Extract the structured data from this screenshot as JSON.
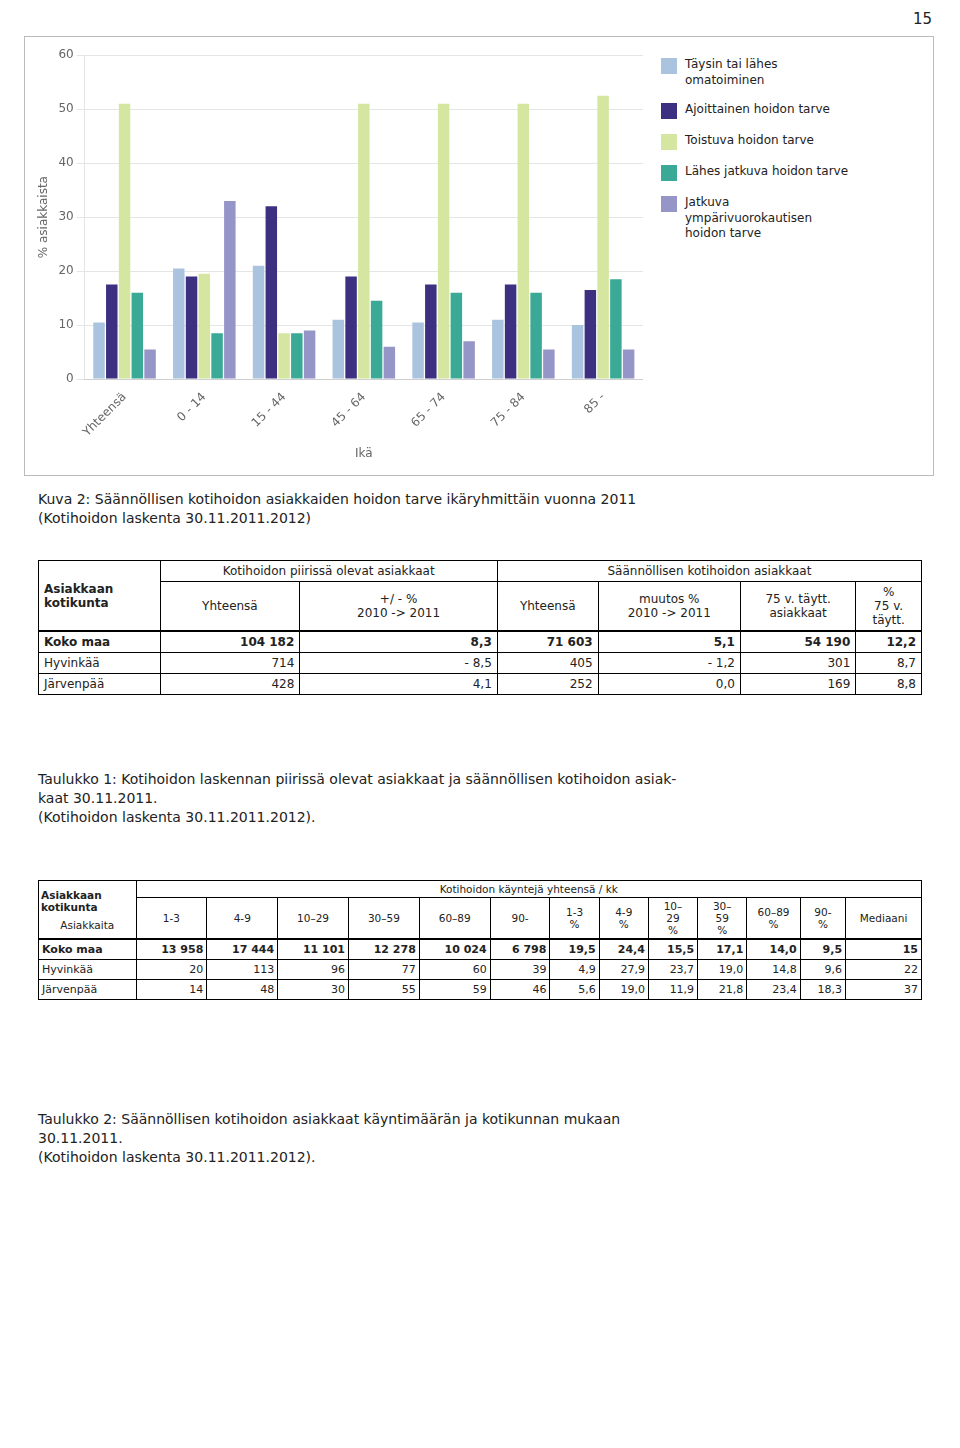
{
  "page_number": "15",
  "chart_data": {
    "type": "bar",
    "categories": [
      "Yhteensä",
      "0 - 14",
      "15 - 44",
      "45 - 64",
      "65 - 74",
      "75 - 84",
      "85 -"
    ],
    "series": [
      {
        "name": "Täysin tai lähes\nomatoiminen",
        "color": "#aac4e0",
        "values": [
          10.5,
          20.5,
          21.0,
          11.0,
          10.5,
          11.0,
          10.0
        ]
      },
      {
        "name": "Ajoittainen hoidon tarve",
        "color": "#3d3080",
        "values": [
          17.5,
          19.0,
          32.0,
          19.0,
          17.5,
          17.5,
          16.5
        ]
      },
      {
        "name": "Toistuva hoidon tarve",
        "color": "#d4e6a0",
        "values": [
          51.0,
          19.5,
          8.5,
          51.0,
          51.0,
          51.0,
          52.5
        ]
      },
      {
        "name": "Lähes jatkuva hoidon tarve",
        "color": "#3aaa96",
        "values": [
          16.0,
          8.5,
          8.5,
          14.5,
          16.0,
          16.0,
          18.5
        ]
      },
      {
        "name": "Jatkuva\nympärivuorokautisen\nhoidon tarve",
        "color": "#9595c8",
        "values": [
          5.5,
          33.0,
          9.0,
          6.0,
          7.0,
          5.5,
          5.5
        ]
      }
    ],
    "ylabel": "% asiakkaista",
    "xlabel": "Ikä",
    "ylim": [
      0,
      60
    ],
    "yticks": [
      0,
      10,
      20,
      30,
      40,
      50,
      60
    ],
    "grid": true,
    "legend": "right"
  },
  "caption1": "Kuva 2: Säännöllisen kotihoidon asiakkaiden hoidon tarve ikäryhmittäin vuonna 2011\n(Kotihoidon laskenta 30.11.2011.2012)",
  "table1": {
    "header": {
      "corner": "Asiakkaan\nkotikunta",
      "groups": [
        "Kotihoidon piirissä olevat asiakkaat",
        "Säännöllisen kotihoidon asiakkaat"
      ],
      "columns": [
        "Yhteensä",
        "+/ - %\n2010 -> 2011",
        "Yhteensä",
        "muutos %\n2010 -> 2011",
        "75 v. täytt.\nasiakkaat",
        "%\n75 v.\ntäytt."
      ]
    },
    "rows": [
      [
        "Koko maa",
        "104 182",
        "8,3",
        "71 603",
        "5,1",
        "54 190",
        "12,2"
      ],
      [
        "Hyvinkää",
        "714",
        "- 8,5",
        "405",
        "- 1,2",
        "301",
        "8,7"
      ],
      [
        "Järvenpää",
        "428",
        "4,1",
        "252",
        "0,0",
        "169",
        "8,8"
      ]
    ],
    "bold_rows": [
      0
    ],
    "caption": "Taulukko 1: Kotihoidon laskennan piirissä olevat asiakkaat ja säännöllisen kotihoidon asiak-\nkaat 30.11.2011.\n(Kotihoidon laskenta 30.11.2011.2012)."
  },
  "table2": {
    "header": {
      "corner": "Asiakkaan\nkotikunta",
      "corner_sub": "Asiakkaita",
      "groups": [
        "Kotihoidon käyntejä yhteensä / kk"
      ],
      "columns": [
        "1-3",
        "4-9",
        "10–29",
        "30–59",
        "60–89",
        "90-",
        "1-3\n%",
        "4-9\n%",
        "10–\n29\n%",
        "30–\n59\n%",
        "60–89\n%",
        "90-\n%",
        "Mediaani"
      ]
    },
    "rows": [
      [
        "Koko maa",
        "13 958",
        "17 444",
        "11 101",
        "12 278",
        "10 024",
        "6 798",
        "19,5",
        "24,4",
        "15,5",
        "17,1",
        "14,0",
        "9,5",
        "15"
      ],
      [
        "Hyvinkää",
        "20",
        "113",
        "96",
        "77",
        "60",
        "39",
        "4,9",
        "27,9",
        "23,7",
        "19,0",
        "14,8",
        "9,6",
        "22"
      ],
      [
        "Järvenpää",
        "14",
        "48",
        "30",
        "55",
        "59",
        "46",
        "5,6",
        "19,0",
        "11,9",
        "21,8",
        "23,4",
        "18,3",
        "37"
      ]
    ],
    "bold_rows": [
      0
    ],
    "caption": "Taulukko 2: Säännöllisen kotihoidon asiakkaat käyntimäärän ja kotikunnan mukaan\n30.11.2011.\n(Kotihoidon laskenta 30.11.2011.2012)."
  }
}
